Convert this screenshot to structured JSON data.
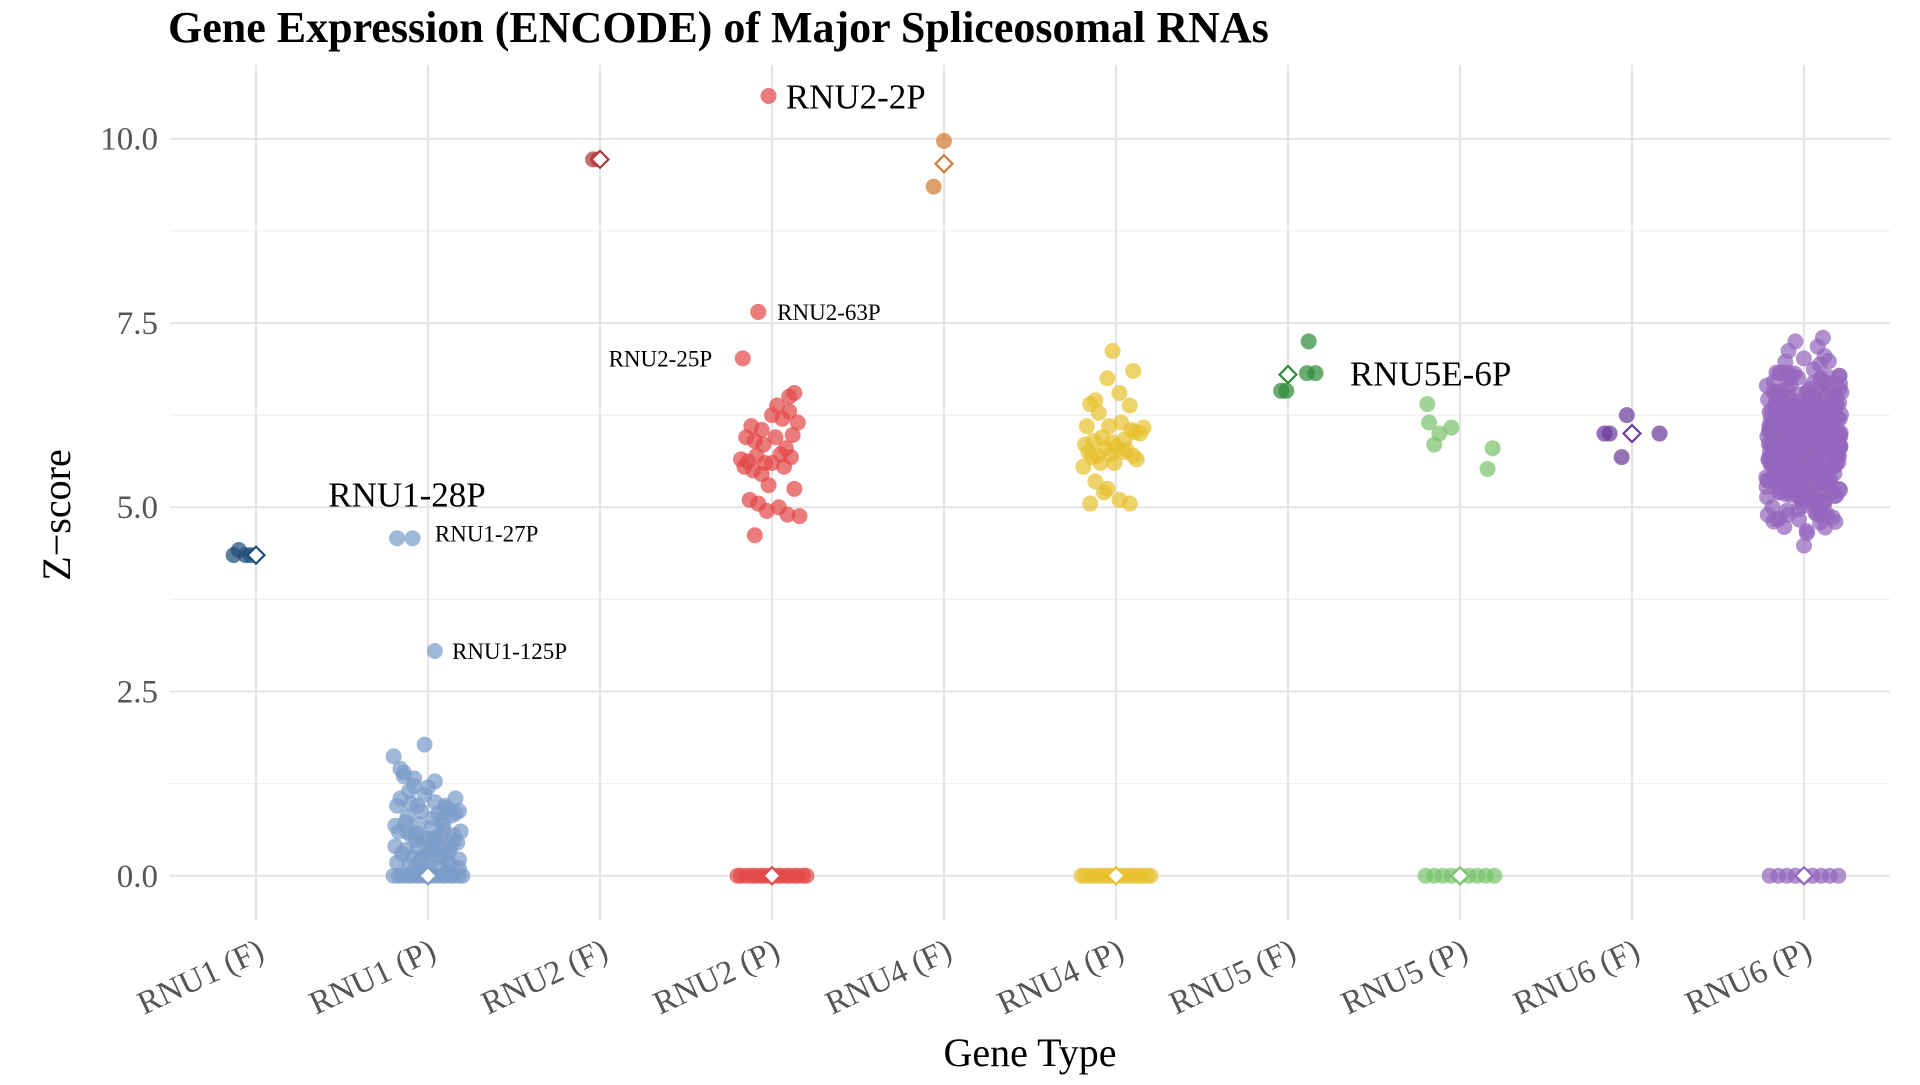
{
  "chart_data": {
    "type": "scatter",
    "title": "Gene Expression (ENCODE) of Major Spliceosomal RNAs",
    "xlabel": "Gene Type",
    "ylabel": "Z−score",
    "categories": [
      "RNU1 (F)",
      "RNU1 (P)",
      "RNU2 (F)",
      "RNU2 (P)",
      "RNU4 (F)",
      "RNU4 (P)",
      "RNU5 (F)",
      "RNU5 (P)",
      "RNU6 (F)",
      "RNU6 (P)"
    ],
    "ylim": [
      -0.6,
      11.0
    ],
    "yticks": [
      0.0,
      2.5,
      5.0,
      7.5,
      10.0
    ],
    "ytick_labels": [
      "0.0",
      "2.5",
      "5.0",
      "7.5",
      "10.0"
    ],
    "grid": true,
    "legend": "none",
    "series": [
      {
        "category": "RNU1 (F)",
        "color": "#1f4e79",
        "x": [
          -0.13,
          -0.1,
          -0.06,
          -0.03
        ],
        "y": [
          4.35,
          4.42,
          4.35,
          4.35
        ],
        "mean": 4.35
      },
      {
        "category": "RNU1 (P)",
        "color": "#7b9dc9",
        "x": [
          -0.18,
          -0.09,
          0.04,
          -0.2,
          -0.14,
          -0.08,
          -0.02,
          0.04,
          0.1,
          0.16,
          -0.16,
          -0.11,
          -0.06,
          0.0,
          0.06,
          0.12,
          0.18,
          -0.18,
          -0.12,
          -0.05,
          0.02,
          0.08,
          0.14,
          0.19,
          -0.17,
          -0.1,
          -0.03,
          0.03,
          0.09,
          0.15,
          -0.19,
          -0.13,
          -0.07,
          -0.01,
          0.05,
          0.11,
          0.17,
          -0.15,
          -0.09,
          -0.04,
          0.02,
          0.08,
          0.13,
          -0.18,
          -0.11,
          -0.05,
          0.01,
          0.07,
          0.12,
          0.18,
          -0.14,
          -0.08,
          -0.02,
          0.04,
          0.1,
          0.16,
          -0.19,
          -0.13,
          -0.07,
          0.0,
          0.06,
          0.12,
          0.18,
          -0.16,
          -0.1,
          -0.04,
          0.03,
          0.09,
          0.15,
          -0.12,
          -0.06,
          0.01,
          0.07,
          0.13,
          -0.09,
          -0.03,
          0.05,
          0.11,
          -0.2,
          -0.15,
          -0.1,
          -0.05,
          0.0,
          0.05,
          0.1,
          0.15,
          0.2,
          -0.17,
          -0.12,
          -0.07,
          -0.02,
          0.03,
          0.08,
          0.13,
          0.18
        ],
        "y": [
          4.58,
          4.58,
          3.05,
          1.62,
          1.4,
          1.32,
          1.78,
          1.28,
          0.95,
          1.05,
          1.45,
          1.15,
          0.95,
          1.2,
          0.85,
          0.9,
          0.88,
          0.95,
          0.8,
          0.7,
          0.65,
          0.75,
          0.82,
          0.6,
          0.6,
          0.55,
          0.5,
          0.45,
          0.62,
          0.55,
          0.4,
          0.35,
          0.48,
          0.3,
          0.52,
          0.42,
          0.45,
          0.3,
          0.25,
          0.22,
          0.35,
          0.28,
          0.38,
          0.18,
          0.15,
          0.2,
          0.12,
          0.25,
          0.18,
          0.22,
          1.35,
          1.22,
          1.1,
          1.0,
          0.92,
          0.85,
          0.68,
          0.72,
          0.58,
          0.5,
          0.4,
          0.32,
          0.1,
          1.05,
          0.98,
          0.88,
          0.78,
          0.7,
          0.48,
          0.6,
          0.38,
          0.28,
          0.55,
          0.15,
          0.05,
          0.08,
          0.12,
          0.05,
          0.0,
          0.0,
          0.0,
          0.0,
          0.0,
          0.0,
          0.0,
          0.0,
          0.0,
          0.0,
          0.0,
          0.0,
          0.0,
          0.0,
          0.0,
          0.0,
          0.0
        ],
        "mean": 0.0
      },
      {
        "category": "RNU2 (F)",
        "color": "#b03a3a",
        "x": [
          -0.04,
          -0.01
        ],
        "y": [
          9.72,
          9.72
        ],
        "mean": 9.72
      },
      {
        "category": "RNU2 (P)",
        "color": "#e34a4a",
        "x": [
          -0.02,
          -0.08,
          -0.17,
          0.13,
          0.03,
          -0.12,
          -0.06,
          0.0,
          0.06,
          0.1,
          0.15,
          -0.15,
          -0.1,
          -0.05,
          0.02,
          0.08,
          0.12,
          -0.18,
          -0.14,
          -0.09,
          -0.04,
          0.05,
          0.11,
          -0.16,
          -0.11,
          -0.06,
          0.0,
          0.07,
          0.13,
          -0.13,
          -0.08,
          -0.03,
          0.04,
          0.09,
          0.16,
          -0.1,
          -0.02,
          0.1,
          -0.2,
          -0.15,
          -0.1,
          -0.05,
          0.0,
          0.05,
          0.1,
          0.15,
          0.2,
          -0.18,
          -0.12,
          -0.07,
          -0.02,
          0.03,
          0.08,
          0.13,
          0.18
        ],
        "y": [
          10.58,
          7.65,
          7.02,
          6.55,
          6.38,
          6.1,
          6.05,
          6.25,
          6.2,
          6.3,
          6.15,
          5.95,
          5.9,
          5.85,
          5.95,
          5.8,
          5.98,
          5.65,
          5.62,
          5.7,
          5.6,
          5.72,
          5.68,
          5.55,
          5.5,
          5.45,
          5.6,
          5.55,
          5.25,
          5.1,
          5.05,
          4.95,
          5.0,
          4.9,
          4.88,
          4.62,
          5.3,
          6.5,
          0.0,
          0.0,
          0.0,
          0.0,
          0.0,
          0.0,
          0.0,
          0.0,
          0.0,
          0.0,
          0.0,
          0.0,
          0.0,
          0.0,
          0.0,
          0.0,
          0.0
        ],
        "mean": 0.0
      },
      {
        "category": "RNU4 (F)",
        "color": "#d17b35",
        "x": [
          -0.06,
          0.0
        ],
        "y": [
          9.35,
          9.97
        ],
        "mean": 9.66
      },
      {
        "category": "RNU4 (P)",
        "color": "#e8c130",
        "x": [
          -0.02,
          -0.12,
          0.1,
          -0.05,
          0.02,
          0.08,
          -0.15,
          -0.1,
          -0.04,
          0.03,
          0.09,
          0.14,
          -0.18,
          -0.13,
          -0.08,
          -0.02,
          0.05,
          0.11,
          0.16,
          -0.16,
          -0.11,
          -0.06,
          0.0,
          0.06,
          0.12,
          -0.19,
          -0.14,
          -0.09,
          -0.03,
          0.04,
          0.1,
          -0.12,
          -0.07,
          0.02,
          0.08,
          -0.15,
          -0.05,
          -0.01,
          -0.17,
          -0.2,
          -0.15,
          -0.1,
          -0.05,
          0.0,
          0.05,
          0.1,
          0.15,
          0.2,
          -0.18,
          -0.12,
          -0.07,
          -0.02,
          0.03,
          0.08,
          0.13,
          0.18
        ],
        "y": [
          7.12,
          6.45,
          6.85,
          6.75,
          6.55,
          6.38,
          6.4,
          6.28,
          6.1,
          6.15,
          6.05,
          6.0,
          5.85,
          5.9,
          5.95,
          5.88,
          5.92,
          6.02,
          6.08,
          5.75,
          5.7,
          5.8,
          5.82,
          5.78,
          5.65,
          5.55,
          5.68,
          5.6,
          5.72,
          5.75,
          5.7,
          5.35,
          5.2,
          5.1,
          5.05,
          5.05,
          5.25,
          5.6,
          6.1,
          0.0,
          0.0,
          0.0,
          0.0,
          0.0,
          0.0,
          0.0,
          0.0,
          0.0,
          0.0,
          0.0,
          0.0,
          0.0,
          0.0,
          0.0,
          0.0,
          0.0
        ],
        "mean": 0.0
      },
      {
        "category": "RNU5 (F)",
        "color": "#2f8a3a",
        "x": [
          -0.04,
          -0.01,
          0.12,
          0.16,
          0.11
        ],
        "y": [
          6.58,
          6.58,
          7.25,
          6.82,
          6.82
        ],
        "mean": 6.8
      },
      {
        "category": "RNU5 (P)",
        "color": "#7bc46f",
        "x": [
          -0.19,
          -0.18,
          -0.12,
          -0.15,
          -0.05,
          0.16,
          0.19,
          -0.2,
          -0.15,
          -0.1,
          -0.05,
          0.0,
          0.05,
          0.1,
          0.15,
          0.2
        ],
        "y": [
          6.4,
          6.15,
          6.0,
          5.85,
          6.08,
          5.52,
          5.8,
          0.0,
          0.0,
          0.0,
          0.0,
          0.0,
          0.0,
          0.0,
          0.0,
          0.0
        ],
        "mean": 0.0
      },
      {
        "category": "RNU6 (F)",
        "color": "#6a3d9a",
        "x": [
          -0.16,
          -0.13,
          -0.06,
          -0.03,
          0.16
        ],
        "y": [
          6.0,
          6.0,
          5.68,
          6.25,
          6.0
        ],
        "mean": 6.0
      },
      {
        "category": "RNU6 (P)",
        "color": "#9467bd",
        "generated_band": {
          "count": 420,
          "y_min": 4.45,
          "y_max": 7.3,
          "x_spread": 0.22
        },
        "x": [
          0.11,
          -0.05,
          0.08,
          -0.09,
          0.12,
          0.0,
          -0.2,
          -0.15,
          -0.1,
          -0.05,
          0.0,
          0.05,
          0.1,
          0.15,
          0.2
        ],
        "y": [
          7.3,
          7.25,
          7.18,
          7.12,
          7.05,
          4.48,
          0.0,
          0.0,
          0.0,
          0.0,
          0.0,
          0.0,
          0.0,
          0.0,
          0.0
        ],
        "mean": 0.0
      }
    ],
    "annotations": [
      {
        "text": "RNU1-28P",
        "category": "RNU1 (P)",
        "dx": -0.58,
        "y": 5.18,
        "size": "large"
      },
      {
        "text": "RNU1-27P",
        "category": "RNU1 (P)",
        "dx": 0.04,
        "y": 4.65,
        "size": "small"
      },
      {
        "text": "RNU1-125P",
        "category": "RNU1 (P)",
        "dx": 0.14,
        "y": 3.05,
        "size": "small"
      },
      {
        "text": "RNU2-2P",
        "category": "RNU2 (P)",
        "dx": 0.08,
        "y": 10.58,
        "size": "large"
      },
      {
        "text": "RNU2-63P",
        "category": "RNU2 (P)",
        "dx": 0.03,
        "y": 7.65,
        "size": "small"
      },
      {
        "text": "RNU2-25P",
        "category": "RNU2 (P)",
        "dx": -0.95,
        "y": 7.02,
        "size": "small"
      },
      {
        "text": "RNU5E-6P",
        "category": "RNU5 (F)",
        "dx": 0.36,
        "y": 6.82,
        "size": "large"
      }
    ]
  }
}
